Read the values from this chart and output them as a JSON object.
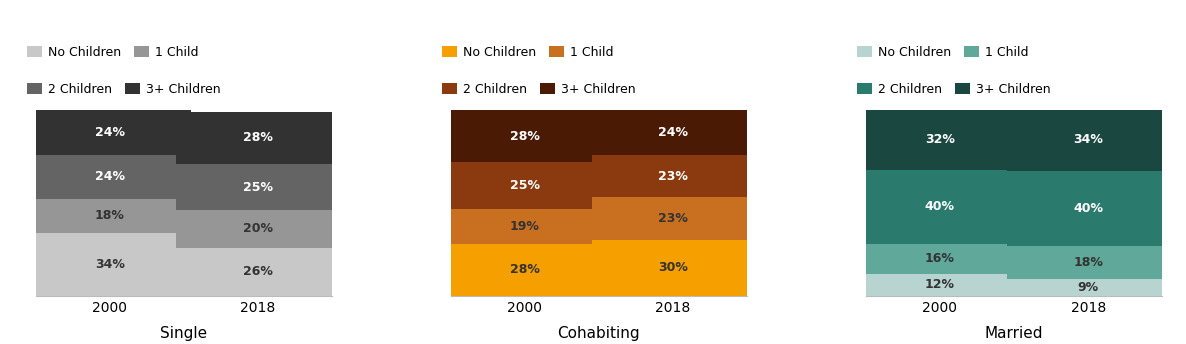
{
  "panels": [
    {
      "title": "Single",
      "years": [
        "2000",
        "2018"
      ],
      "data": {
        "No Children": [
          34,
          26
        ],
        "1 Child": [
          18,
          20
        ],
        "2 Children": [
          24,
          25
        ],
        "3+ Children": [
          24,
          28
        ]
      },
      "colors": [
        "#c8c8c8",
        "#969696",
        "#646464",
        "#323232"
      ],
      "text_colors": [
        "#333333",
        "#333333",
        "#ffffff",
        "#ffffff"
      ]
    },
    {
      "title": "Cohabiting",
      "years": [
        "2000",
        "2018"
      ],
      "data": {
        "No Children": [
          28,
          30
        ],
        "1 Child": [
          19,
          23
        ],
        "2 Children": [
          25,
          23
        ],
        "3+ Children": [
          28,
          24
        ]
      },
      "colors": [
        "#f5a000",
        "#c87020",
        "#8b3a0f",
        "#4a1a05"
      ],
      "text_colors": [
        "#333333",
        "#333333",
        "#ffffff",
        "#ffffff"
      ]
    },
    {
      "title": "Married",
      "years": [
        "2000",
        "2018"
      ],
      "data": {
        "No Children": [
          12,
          9
        ],
        "1 Child": [
          16,
          18
        ],
        "2 Children": [
          40,
          40
        ],
        "3+ Children": [
          32,
          34
        ]
      },
      "colors": [
        "#b8d4d0",
        "#5fa89a",
        "#2a7a6e",
        "#1a4840"
      ],
      "text_colors": [
        "#333333",
        "#333333",
        "#ffffff",
        "#ffffff"
      ]
    }
  ],
  "legend_labels": [
    "No Children",
    "1 Child",
    "2 Children",
    "3+ Children"
  ],
  "bar_width": 0.55,
  "figsize": [
    11.86,
    3.44
  ],
  "dpi": 100
}
